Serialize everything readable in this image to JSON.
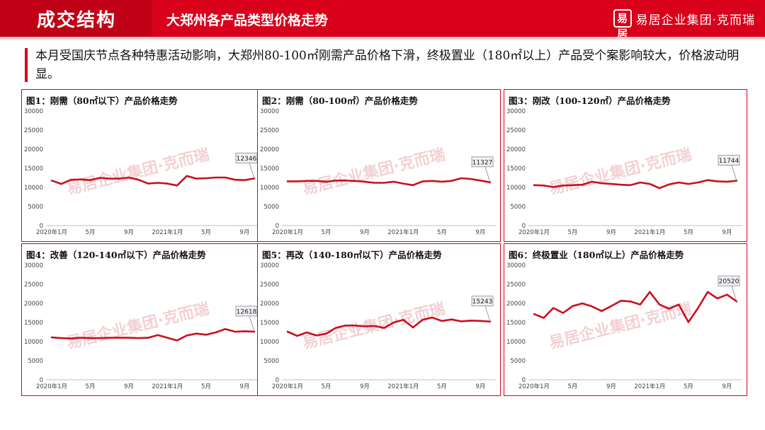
{
  "header": {
    "section_title": "成交结构",
    "subtitle": "大郑州各产品类型价格走势",
    "brand_logo": "易居",
    "brand_text": "易居企业集团·克而瑞"
  },
  "lead": {
    "text": "本月受国庆节点各种特惠活动影响，大郑州80-100㎡刚需产品价格下滑，终极置业（180㎡以上）产品受个案影响较大，价格波动明显。"
  },
  "colors": {
    "accent": "#d9001b",
    "line": "#c8101f",
    "label_bg": "#eef0f4"
  },
  "watermark": "易居企业集团·克而瑞",
  "chart_data": [
    {
      "type": "line",
      "title": "图1：刚需（80㎡以下）产品价格走势",
      "x_tick_labels": [
        "2020年1月",
        "5月",
        "9月",
        "2021年1月",
        "5月",
        "9月"
      ],
      "x_tick_index": [
        0,
        4,
        8,
        12,
        16,
        20
      ],
      "y_ticks": [
        0,
        5000,
        10000,
        15000,
        20000,
        25000,
        30000
      ],
      "ylim": [
        0,
        30000
      ],
      "values": [
        11800,
        10900,
        12000,
        12100,
        11900,
        12500,
        12300,
        12300,
        12600,
        12000,
        11000,
        11200,
        11000,
        10500,
        13000,
        12300,
        12400,
        12600,
        12600,
        12000,
        11900,
        12346
      ],
      "last_label": "12346"
    },
    {
      "type": "line",
      "title": "图2：刚需（80-100㎡）产品价格走势",
      "x_tick_labels": [
        "2020年1月",
        "5月",
        "9月",
        "2021年1月",
        "5月",
        "9月"
      ],
      "x_tick_index": [
        0,
        4,
        8,
        12,
        16,
        20
      ],
      "y_ticks": [
        0,
        5000,
        10000,
        15000,
        20000,
        25000,
        30000
      ],
      "ylim": [
        0,
        30000
      ],
      "values": [
        11600,
        11600,
        11700,
        11700,
        11500,
        11800,
        11800,
        11700,
        11500,
        11200,
        11200,
        11500,
        11000,
        10600,
        11600,
        11700,
        11500,
        11700,
        12400,
        12200,
        11800,
        11327
      ],
      "last_label": "11327"
    },
    {
      "type": "line",
      "title": "图3：刚改（100-120㎡）产品价格走势",
      "x_tick_labels": [
        "2020年1月",
        "5月",
        "9月",
        "2021年1月",
        "5月",
        "9月"
      ],
      "x_tick_index": [
        0,
        4,
        8,
        12,
        16,
        20
      ],
      "y_ticks": [
        0,
        5000,
        10000,
        15000,
        20000,
        25000,
        30000
      ],
      "ylim": [
        0,
        30000
      ],
      "values": [
        10600,
        10500,
        10100,
        10500,
        10600,
        10700,
        11500,
        11100,
        10900,
        10700,
        10600,
        11300,
        10900,
        9800,
        10800,
        11300,
        10900,
        11300,
        11900,
        11600,
        11500,
        11744
      ],
      "last_label": "11744"
    },
    {
      "type": "line",
      "title": "图4：改善（120-140㎡以下）产品价格走势",
      "x_tick_labels": [
        "2020年1月",
        "5月",
        "9月",
        "2021年1月",
        "5月",
        "9月"
      ],
      "x_tick_index": [
        0,
        4,
        8,
        12,
        16,
        20
      ],
      "y_ticks": [
        0,
        5000,
        10000,
        15000,
        20000,
        25000,
        30000
      ],
      "ylim": [
        0,
        30000
      ],
      "values": [
        11100,
        10900,
        10800,
        11000,
        10900,
        10900,
        11000,
        11000,
        11000,
        10900,
        11000,
        11700,
        11000,
        10300,
        11600,
        12100,
        11800,
        12400,
        13300,
        12600,
        12700,
        12618
      ],
      "last_label": "12618"
    },
    {
      "type": "line",
      "title": "图5：再改（140-180㎡以下）产品价格走势",
      "x_tick_labels": [
        "2020年1月",
        "5月",
        "9月",
        "2021年1月",
        "5月",
        "9月"
      ],
      "x_tick_index": [
        0,
        4,
        8,
        12,
        16,
        20
      ],
      "y_ticks": [
        0,
        5000,
        10000,
        15000,
        20000,
        25000,
        30000
      ],
      "ylim": [
        0,
        30000
      ],
      "values": [
        12600,
        11500,
        12400,
        11600,
        12100,
        13600,
        14200,
        14200,
        14000,
        14100,
        13600,
        15000,
        15700,
        13700,
        15700,
        16300,
        15400,
        15800,
        15300,
        15500,
        15400,
        15243
      ],
      "last_label": "15243"
    },
    {
      "type": "line",
      "title": "图6：终极置业（180㎡以上）产品价格走势",
      "x_tick_labels": [
        "2020年1月",
        "5月",
        "9月",
        "2021年1月",
        "5月",
        "9月"
      ],
      "x_tick_index": [
        0,
        4,
        8,
        12,
        16,
        20
      ],
      "y_ticks": [
        0,
        5000,
        10000,
        15000,
        20000,
        25000,
        30000
      ],
      "ylim": [
        0,
        30000
      ],
      "values": [
        17200,
        16200,
        18800,
        17500,
        19300,
        20000,
        19200,
        18000,
        19300,
        20700,
        20500,
        19700,
        23000,
        19700,
        18600,
        19700,
        15100,
        18800,
        23000,
        21300,
        22300,
        20520
      ],
      "last_label": "20520"
    }
  ]
}
